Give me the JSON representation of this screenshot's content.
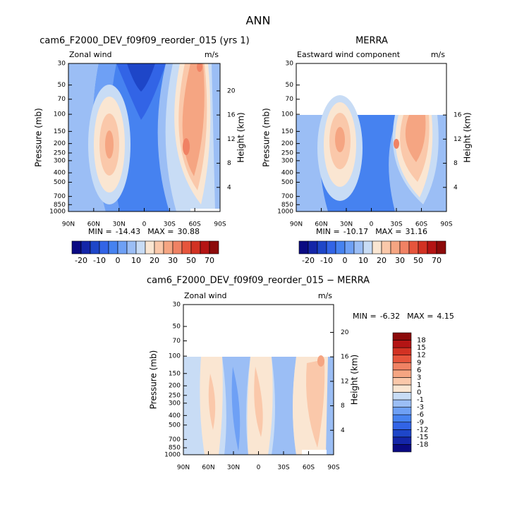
{
  "title": "ANN",
  "chart_data": [
    {
      "type": "contour",
      "title": "cam6_F2000_DEV_f09f09_reorder_015 (yrs 1)",
      "subtitle_left": "Zonal wind",
      "subtitle_right": "m/s",
      "y_label": "Pressure (mb)",
      "y2_label": "Height (km)",
      "log_y": true,
      "ylim": [
        1000,
        30
      ],
      "yticks": [
        30,
        50,
        70,
        100,
        150,
        200,
        250,
        300,
        400,
        500,
        700,
        850,
        1000
      ],
      "y2ticks": [
        20,
        16,
        12,
        8,
        4
      ],
      "x": [
        "90N",
        "60N",
        "30N",
        "0",
        "30S",
        "60S",
        "90S"
      ],
      "min_label": "MIN =",
      "min": -14.43,
      "max_label": "MAX =",
      "max": 30.88,
      "colorbar": {
        "orientation": "horizontal",
        "labels": [
          -20,
          -10,
          0,
          10,
          20,
          30,
          50,
          70
        ],
        "colors": [
          "#0a0a82",
          "#1426a8",
          "#1e46c8",
          "#3264e6",
          "#4682f0",
          "#6ea0f5",
          "#9bbef5",
          "#c8dcf5",
          "#fae6d2",
          "#fac8aa",
          "#f5a582",
          "#f08264",
          "#e6553c",
          "#d23223",
          "#b41414",
          "#8c0a0a"
        ]
      }
    },
    {
      "type": "contour",
      "title": "MERRA",
      "subtitle_left": "Eastward wind component",
      "subtitle_right": "m/s",
      "y_label": "Pressure (mb)",
      "y2_label": "Height (km)",
      "log_y": true,
      "ylim": [
        1000,
        30
      ],
      "yticks": [
        30,
        50,
        70,
        100,
        150,
        200,
        250,
        300,
        400,
        500,
        700,
        850,
        1000
      ],
      "y2ticks": [
        16,
        12,
        8,
        4
      ],
      "x": [
        "90N",
        "60N",
        "30N",
        "0",
        "30S",
        "60S",
        "90S"
      ],
      "min_label": "MIN =",
      "min": -10.17,
      "max_label": "MAX =",
      "max": 31.16,
      "colorbar": {
        "orientation": "horizontal",
        "labels": [
          -20,
          -10,
          0,
          10,
          20,
          30,
          50,
          70
        ],
        "colors": [
          "#0a0a82",
          "#1426a8",
          "#1e46c8",
          "#3264e6",
          "#4682f0",
          "#6ea0f5",
          "#9bbef5",
          "#c8dcf5",
          "#fae6d2",
          "#fac8aa",
          "#f5a582",
          "#f08264",
          "#e6553c",
          "#d23223",
          "#b41414",
          "#8c0a0a"
        ]
      }
    },
    {
      "type": "contour",
      "title": "cam6_F2000_DEV_f09f09_reorder_015 − MERRA",
      "subtitle_left": "Zonal wind",
      "subtitle_right": "m/s",
      "y_label": "Pressure (mb)",
      "y2_label": "Height (km)",
      "log_y": true,
      "ylim": [
        1000,
        30
      ],
      "yticks": [
        30,
        50,
        70,
        100,
        150,
        200,
        250,
        300,
        400,
        500,
        700,
        850,
        1000
      ],
      "y2ticks": [
        20,
        16,
        12,
        8,
        4
      ],
      "x": [
        "90N",
        "60N",
        "30N",
        "0",
        "30S",
        "60S",
        "90S"
      ],
      "min_label": "MIN =",
      "min": -6.32,
      "max_label": "MAX =",
      "max": 4.15,
      "colorbar": {
        "orientation": "vertical",
        "labels": [
          18,
          15,
          12,
          9,
          6,
          3,
          1,
          0,
          -1,
          -3,
          -6,
          -9,
          -12,
          -15,
          -18
        ],
        "colors": [
          "#0a0a82",
          "#1426a8",
          "#1e46c8",
          "#3264e6",
          "#4682f0",
          "#6ea0f5",
          "#9bbef5",
          "#c8dcf5",
          "#fae6d2",
          "#fac8aa",
          "#f5a582",
          "#f08264",
          "#e6553c",
          "#d23223",
          "#b41414",
          "#8c0a0a"
        ]
      }
    }
  ]
}
